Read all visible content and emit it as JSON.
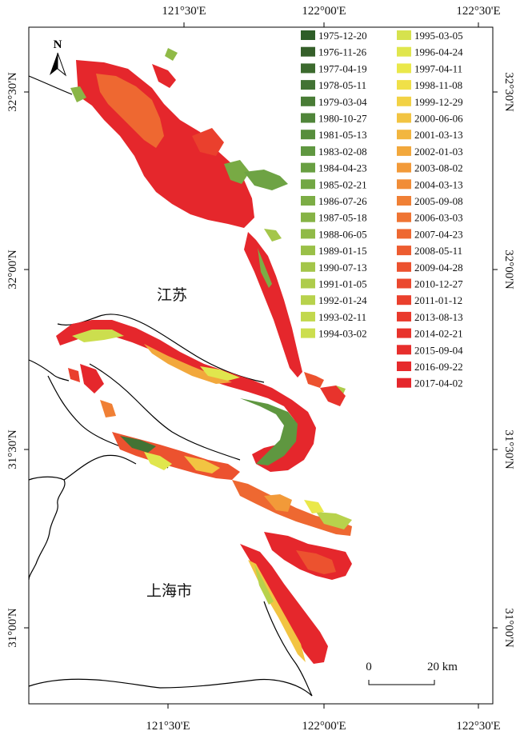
{
  "map": {
    "top_ticks": [
      "121°30'E",
      "122°00'E",
      "122°30'E"
    ],
    "bottom_ticks": [
      "121°30'E",
      "122°00'E",
      "122°30'E"
    ],
    "left_ticks": [
      "32°30'N",
      "32°00'N",
      "31°30'N",
      "31°00'N"
    ],
    "right_ticks": [
      "32°30'N",
      "32°00'N",
      "31°30'N",
      "31°00'N"
    ],
    "north_label": "N",
    "regions": {
      "jiangsu": "江苏",
      "shanghai": "上海市"
    },
    "scale": {
      "zero": "0",
      "distance": "20 km"
    }
  },
  "legend": {
    "dates": [
      {
        "label": "1975-12-20",
        "color": "#2e5e28"
      },
      {
        "label": "1976-11-26",
        "color": "#355f2a"
      },
      {
        "label": "1977-04-19",
        "color": "#3c6a2e"
      },
      {
        "label": "1978-05-11",
        "color": "#427334"
      },
      {
        "label": "1979-03-04",
        "color": "#497c36"
      },
      {
        "label": "1980-10-27",
        "color": "#50853a"
      },
      {
        "label": "1981-05-13",
        "color": "#578e3c"
      },
      {
        "label": "1983-02-08",
        "color": "#5f9740"
      },
      {
        "label": "1984-04-23",
        "color": "#689f42"
      },
      {
        "label": "1985-02-21",
        "color": "#72a744"
      },
      {
        "label": "1986-07-26",
        "color": "#7cad45"
      },
      {
        "label": "1987-05-18",
        "color": "#86b346"
      },
      {
        "label": "1988-06-05",
        "color": "#90ba47"
      },
      {
        "label": "1989-01-15",
        "color": "#9ac048"
      },
      {
        "label": "1990-07-13",
        "color": "#a4c64a"
      },
      {
        "label": "1991-01-05",
        "color": "#aecc4b"
      },
      {
        "label": "1992-01-24",
        "color": "#b8d24c"
      },
      {
        "label": "1993-02-11",
        "color": "#c2d84d"
      },
      {
        "label": "1994-03-02",
        "color": "#ccde4e"
      },
      {
        "label": "1995-03-05",
        "color": "#d6e24e"
      },
      {
        "label": "1996-04-24",
        "color": "#e0e64d"
      },
      {
        "label": "1997-04-11",
        "color": "#eae84a"
      },
      {
        "label": "1998-11-08",
        "color": "#f0e048"
      },
      {
        "label": "1999-12-29",
        "color": "#f2d245"
      },
      {
        "label": "2000-06-06",
        "color": "#f2c442"
      },
      {
        "label": "2001-03-13",
        "color": "#f2b63f"
      },
      {
        "label": "2002-01-03",
        "color": "#f2a83c"
      },
      {
        "label": "2003-08-02",
        "color": "#f29a39"
      },
      {
        "label": "2004-03-13",
        "color": "#f18d37"
      },
      {
        "label": "2005-09-08",
        "color": "#f08035"
      },
      {
        "label": "2006-03-03",
        "color": "#ef7433"
      },
      {
        "label": "2007-04-23",
        "color": "#ee6831"
      },
      {
        "label": "2008-05-11",
        "color": "#ed5c30"
      },
      {
        "label": "2009-04-28",
        "color": "#ec522f"
      },
      {
        "label": "2010-12-27",
        "color": "#eb482e"
      },
      {
        "label": "2011-01-12",
        "color": "#ea402d"
      },
      {
        "label": "2013-08-13",
        "color": "#e9392c"
      },
      {
        "label": "2014-02-21",
        "color": "#e8332c"
      },
      {
        "label": "2015-09-04",
        "color": "#e72e2c"
      },
      {
        "label": "2016-09-22",
        "color": "#e62a2c"
      },
      {
        "label": "2017-04-02",
        "color": "#e5272c"
      }
    ]
  }
}
